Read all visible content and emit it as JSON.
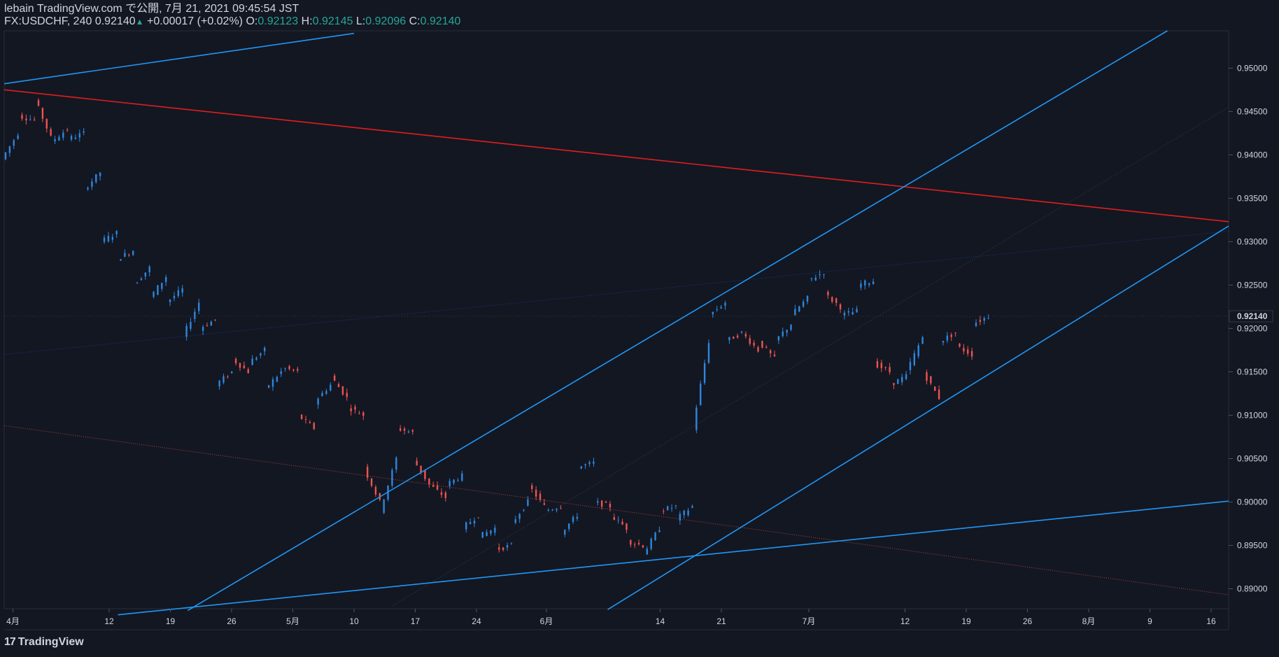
{
  "header": {
    "publish_line": "lebain TradingView.com で公開, 7月 21, 2021 09:45:54 JST",
    "symbol": "FX:USDCHF, 240",
    "last": "0.92140",
    "change": "+0.00017 (+0.02%)",
    "o_label": "O:",
    "o_value": "0.92123",
    "h_label": "H:",
    "h_value": "0.92145",
    "l_label": "L:",
    "l_value": "0.92096",
    "c_label": "C:",
    "c_value": "0.92140"
  },
  "footer": {
    "brand": "TradingView",
    "mark": "17"
  },
  "colors": {
    "background": "#131722",
    "up": "#2962ff",
    "up_candle": "#2e86de",
    "down_candle": "#ef5350",
    "trend_blue": "#2196f3",
    "trend_red": "#e01e1e",
    "text": "#d1d4dc"
  },
  "chart_data": {
    "type": "candlestick",
    "symbol": "FX:USDCHF",
    "timeframe": "240",
    "y_ticks": [
      "0.95000",
      "0.94500",
      "0.94000",
      "0.93500",
      "0.93000",
      "0.92500",
      "0.92000",
      "0.91500",
      "0.91000",
      "0.90500",
      "0.90000",
      "0.89500",
      "0.89000"
    ],
    "ylim": [
      0.8877,
      0.9543
    ],
    "x_ticks": [
      "4月",
      "12",
      "19",
      "26",
      "5月",
      "10",
      "17",
      "24",
      "6月",
      "14",
      "21",
      "7月",
      "12",
      "19",
      "26",
      "8月",
      "9",
      "16"
    ],
    "current_price_label": "0.92140",
    "current_price": 0.9214,
    "price_path": [
      [
        0.9395,
        0.9425
      ],
      [
        0.9445,
        0.944
      ],
      [
        0.9465,
        0.942
      ],
      [
        0.9415,
        0.943
      ],
      [
        0.9418,
        0.9425
      ],
      [
        0.936,
        0.938
      ],
      [
        0.93,
        0.931
      ],
      [
        0.928,
        0.929
      ],
      [
        0.925,
        0.927
      ],
      [
        0.9235,
        0.926
      ],
      [
        0.923,
        0.9245
      ],
      [
        0.919,
        0.923
      ],
      [
        0.92,
        0.921
      ],
      [
        0.9135,
        0.915
      ],
      [
        0.9165,
        0.915
      ],
      [
        0.916,
        0.9175
      ],
      [
        0.913,
        0.915
      ],
      [
        0.9155,
        0.915
      ],
      [
        0.91,
        0.9085
      ],
      [
        0.9115,
        0.9135
      ],
      [
        0.9145,
        0.912
      ],
      [
        0.911,
        0.91
      ],
      [
        0.904,
        0.9
      ],
      [
        0.899,
        0.905
      ],
      [
        0.9085,
        0.908
      ],
      [
        0.905,
        0.902
      ],
      [
        0.902,
        0.9005
      ],
      [
        0.902,
        0.903
      ],
      [
        0.897,
        0.8985
      ],
      [
        0.896,
        0.897
      ],
      [
        0.8945,
        0.895
      ],
      [
        0.8975,
        0.9
      ],
      [
        0.902,
        0.8995
      ],
      [
        0.899,
        0.8995
      ],
      [
        0.8965,
        0.8985
      ],
      [
        0.904,
        0.9045
      ],
      [
        0.9,
        0.8995
      ],
      [
        0.8985,
        0.897
      ],
      [
        0.8955,
        0.895
      ],
      [
        0.894,
        0.897
      ],
      [
        0.899,
        0.8995
      ],
      [
        0.898,
        0.8995
      ],
      [
        0.9085,
        0.9185
      ],
      [
        0.9215,
        0.923
      ],
      [
        0.9185,
        0.9195
      ],
      [
        0.9195,
        0.9175
      ],
      [
        0.9185,
        0.9165
      ],
      [
        0.9185,
        0.9205
      ],
      [
        0.9215,
        0.9235
      ],
      [
        0.9255,
        0.9265
      ],
      [
        0.924,
        0.9225
      ],
      [
        0.9215,
        0.922
      ],
      [
        0.925,
        0.9255
      ],
      [
        0.916,
        0.915
      ],
      [
        0.9135,
        0.9145
      ],
      [
        0.915,
        0.919
      ],
      [
        0.915,
        0.912
      ],
      [
        0.9185,
        0.9195
      ],
      [
        0.918,
        0.917
      ],
      [
        0.9205,
        0.9214
      ]
    ],
    "trendlines": [
      {
        "color": "blue",
        "points": [
          [
            "3/31",
            0.9482
          ],
          [
            "5/10",
            0.954
          ]
        ]
      },
      {
        "color": "red",
        "points": [
          [
            "3/31",
            0.9475
          ],
          [
            "8/18",
            0.9323
          ]
        ]
      },
      {
        "color": "blue",
        "points": [
          [
            "4/21",
            0.8875
          ],
          [
            "8/11",
            0.9543
          ]
        ]
      },
      {
        "color": "blue",
        "points": [
          [
            "4/13",
            0.887
          ],
          [
            "8/18",
            0.9001
          ]
        ]
      },
      {
        "color": "blue",
        "points": [
          [
            "6/8",
            0.8876
          ],
          [
            "8/18",
            0.9318
          ]
        ]
      }
    ]
  }
}
